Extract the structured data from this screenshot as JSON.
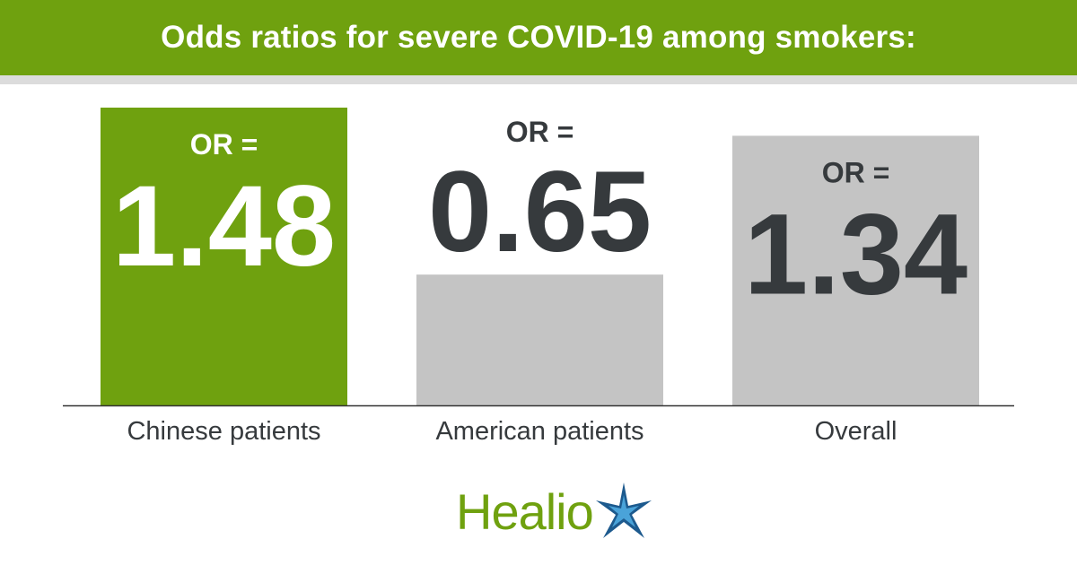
{
  "header": {
    "title": "Odds ratios for severe COVID-19 among smokers:"
  },
  "colors": {
    "header_bg": "#6fa10f",
    "header_strip": "#dcdcdc",
    "highlight_bar": "#6fa10f",
    "gray_bar": "#c4c4c4",
    "dark_text": "#363a3d",
    "white_text": "#ffffff",
    "axis": "#333333",
    "logo_green": "#6fa10f",
    "logo_star_blue": "#1d5a8e",
    "logo_star_light": "#4aa3d9"
  },
  "chart_data": {
    "type": "bar",
    "title": "Odds ratios for severe COVID-19 among smokers:",
    "categories": [
      "Chinese patients",
      "American patients",
      "Overall"
    ],
    "values": [
      1.48,
      0.65,
      1.34
    ],
    "value_prefix": "OR =",
    "value_labels": [
      "1.48",
      "0.65",
      "1.34"
    ],
    "highlight_index": 0,
    "ylim": [
      0,
      1.48
    ],
    "grid": false,
    "legend": "none"
  },
  "logo": {
    "text": "Healio",
    "icon": "star-burst-icon"
  }
}
